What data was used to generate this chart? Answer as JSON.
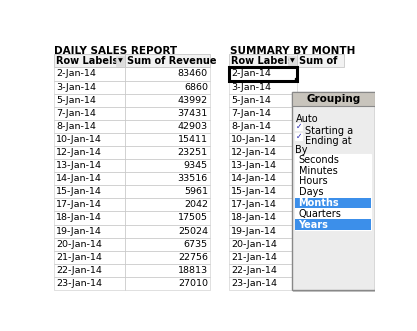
{
  "title_left": "DAILY SALES REPORT",
  "title_right": "SUMMARY BY MONTH",
  "col_headers_left": [
    "Row Labels",
    "Sum of Revenue"
  ],
  "col_headers_right": [
    "Row Labels",
    "Sum of"
  ],
  "rows": [
    [
      "2-Jan-14",
      "83460"
    ],
    [
      "3-Jan-14",
      "6860"
    ],
    [
      "5-Jan-14",
      "43992"
    ],
    [
      "7-Jan-14",
      "37431"
    ],
    [
      "8-Jan-14",
      "42903"
    ],
    [
      "10-Jan-14",
      "15411"
    ],
    [
      "12-Jan-14",
      "23251"
    ],
    [
      "13-Jan-14",
      "9345"
    ],
    [
      "14-Jan-14",
      "33516"
    ],
    [
      "15-Jan-14",
      "5961"
    ],
    [
      "17-Jan-14",
      "2042"
    ],
    [
      "18-Jan-14",
      "17505"
    ],
    [
      "19-Jan-14",
      "25024"
    ],
    [
      "20-Jan-14",
      "6735"
    ],
    [
      "21-Jan-14",
      "22756"
    ],
    [
      "22-Jan-14",
      "18813"
    ],
    [
      "23-Jan-14",
      "27010"
    ]
  ],
  "right_col_dates": [
    "2-Jan-14",
    "3-Jan-14",
    "5-Jan-14",
    "7-Jan-14",
    "8-Jan-14",
    "10-Jan-14",
    "12-Jan-14",
    "13-Jan-14",
    "14-Jan-14",
    "15-Jan-14",
    "17-Jan-14",
    "18-Jan-14",
    "19-Jan-14",
    "20-Jan-14",
    "21-Jan-14",
    "22-Jan-14",
    "23-Jan-14"
  ],
  "grouping_title": "Grouping",
  "auto_label": "Auto",
  "starting_label": "Starting a",
  "ending_label": "Ending at",
  "by_label": "By",
  "by_items": [
    "Seconds",
    "Minutes",
    "Hours",
    "Days",
    "Months",
    "Quarters",
    "Years"
  ],
  "highlighted_items": [
    "Months",
    "Years"
  ],
  "bg_color": "#ffffff",
  "grid_color": "#c8c8c8",
  "highlight_color": "#3c8fea",
  "title_fs": 7.5,
  "header_fs": 7.0,
  "body_fs": 6.8,
  "dlg_fs": 7.0
}
